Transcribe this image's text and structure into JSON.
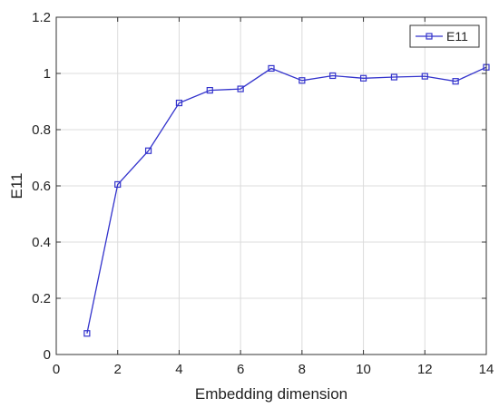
{
  "chart_data": {
    "type": "line",
    "title": "",
    "xlabel": "Embedding dimension",
    "ylabel": "E11",
    "xlim": [
      0,
      14
    ],
    "ylim": [
      0,
      1.2
    ],
    "xticks": [
      "0",
      "2",
      "4",
      "6",
      "8",
      "10",
      "12",
      "14"
    ],
    "yticks": [
      "0",
      "0.2",
      "0.4",
      "0.6",
      "0.8",
      "1",
      "1.2"
    ],
    "grid": true,
    "legend_position": "top-right",
    "series": [
      {
        "name": "E11",
        "color": "#3333cc",
        "marker": "square",
        "x": [
          1,
          2,
          3,
          4,
          5,
          6,
          7,
          8,
          9,
          10,
          11,
          12,
          13,
          14
        ],
        "y": [
          0.075,
          0.605,
          0.725,
          0.895,
          0.94,
          0.945,
          1.018,
          0.975,
          0.992,
          0.983,
          0.987,
          0.99,
          0.972,
          1.022
        ]
      }
    ]
  }
}
